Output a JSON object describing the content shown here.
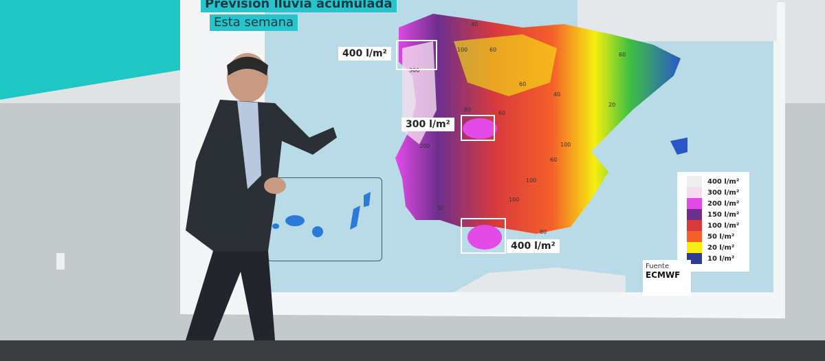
{
  "title": "Previsión lluvia acumulada",
  "subtitle": "Esta semana",
  "callouts": [
    {
      "label": "400 l/m²",
      "region": "Galicia"
    },
    {
      "label": "300 l/m²",
      "region": "Madrid"
    },
    {
      "label": "400 l/m²",
      "region": "Cádiz"
    }
  ],
  "map_labels": [
    "40",
    "100",
    "60",
    "60",
    "40",
    "60",
    "20",
    "80",
    "60",
    "100",
    "200",
    "300",
    "100",
    "60",
    "30",
    "80",
    "100"
  ],
  "legend": [
    {
      "label": "400 l/m²",
      "color": "#f1eef2"
    },
    {
      "label": "300 l/m²",
      "color": "#f4dcee"
    },
    {
      "label": "200 l/m²",
      "color": "#e34be8"
    },
    {
      "label": "150 l/m²",
      "color": "#6d2f8c"
    },
    {
      "label": "100 l/m²",
      "color": "#d83a3c"
    },
    {
      "label": "50 l/m²",
      "color": "#f5602a"
    },
    {
      "label": "20 l/m²",
      "color": "#f6ef10"
    },
    {
      "label": "10 l/m²",
      "color": "#2e3f8f"
    }
  ],
  "source": {
    "label": "Fuente",
    "value": "ECMWF"
  },
  "colors": {
    "title_bg": "#27c4cc",
    "sea": "#b9dbe8",
    "studio_teal": "#1fc7c4"
  }
}
